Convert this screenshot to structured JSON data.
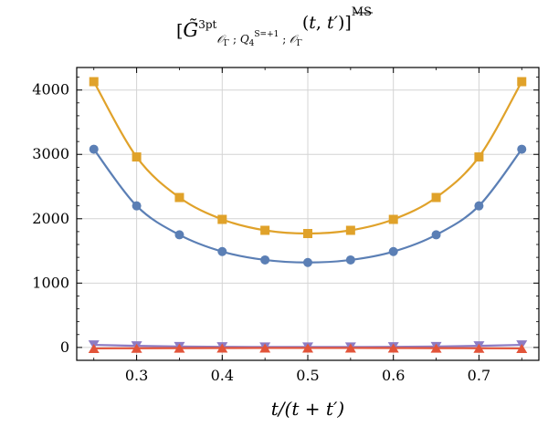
{
  "chart_data": {
    "type": "line",
    "title": "[G̃³ᵖᵗ_{𝒪_Γ ; Q₄^{S=+1} ; 𝒪_Γ}(t, t′)]^{MS‾}",
    "xlabel": "t/(t + t′)",
    "ylabel": "",
    "xlim": [
      0.23,
      0.77
    ],
    "ylim": [
      -200,
      4350
    ],
    "xticks": [
      0.3,
      0.4,
      0.5,
      0.6,
      0.7
    ],
    "yticks": [
      0,
      1000,
      2000,
      3000,
      4000
    ],
    "grid": true,
    "legend": "none",
    "x": [
      0.25,
      0.3,
      0.35,
      0.4,
      0.45,
      0.5,
      0.55,
      0.6,
      0.65,
      0.7,
      0.75
    ],
    "series": [
      {
        "color": "#e0a22a",
        "marker": "square",
        "values": [
          4130,
          2960,
          2330,
          1990,
          1820,
          1770,
          1820,
          1990,
          2330,
          2960,
          4130
        ]
      },
      {
        "color": "#5b7fb5",
        "marker": "circle",
        "values": [
          3080,
          2200,
          1750,
          1490,
          1360,
          1320,
          1360,
          1490,
          1750,
          2200,
          3080
        ]
      },
      {
        "color": "#8d7cc4",
        "marker": "triangle-down",
        "values": [
          40,
          25,
          15,
          10,
          8,
          7,
          8,
          10,
          15,
          25,
          40
        ]
      },
      {
        "color": "#e2543a",
        "marker": "triangle-up",
        "values": [
          -15,
          -12,
          -10,
          -9,
          -8,
          -8,
          -8,
          -9,
          -10,
          -12,
          -15
        ]
      }
    ]
  }
}
